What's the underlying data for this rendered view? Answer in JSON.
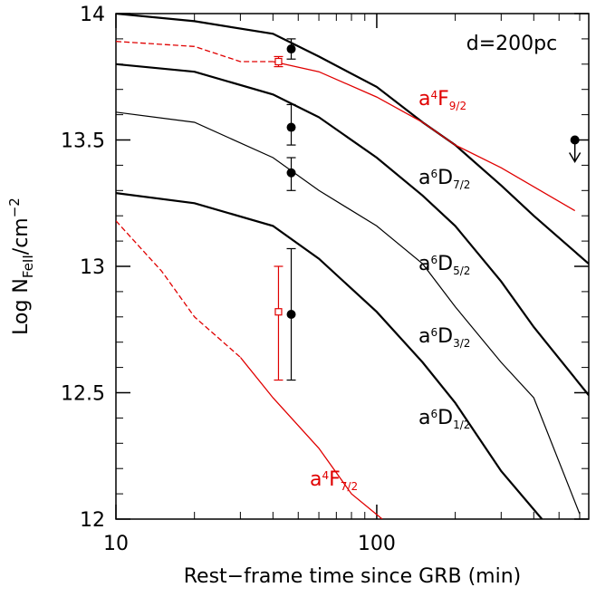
{
  "chart_data": {
    "type": "line",
    "annotation": "d=200pc",
    "x_label": "Rest−frame time since GRB (min)",
    "y_label": {
      "base": "Log N",
      "sub": "FeII",
      "mid": "/cm",
      "sup": "−2"
    },
    "xscale": "log",
    "xlim": [
      10,
      650
    ],
    "ylim": [
      12,
      14
    ],
    "xticks": [
      10,
      100
    ],
    "xminorticks": [
      20,
      30,
      40,
      50,
      60,
      70,
      80,
      90,
      200,
      300,
      400,
      500,
      600
    ],
    "yticks": [
      12,
      12.5,
      13,
      13.5,
      14
    ],
    "yminorticks": [
      12.1,
      12.2,
      12.3,
      12.4,
      12.6,
      12.7,
      12.8,
      12.9,
      13.1,
      13.2,
      13.3,
      13.4,
      13.6,
      13.7,
      13.8,
      13.9
    ],
    "series": [
      {
        "label": {
          "base": "a",
          "sup": "6",
          "term": "D",
          "sub": "7/2"
        },
        "color": "#000000",
        "width": 2.2,
        "x": [
          10,
          20,
          40,
          60,
          100,
          150,
          200,
          300,
          400,
          650
        ],
        "values": [
          14.0,
          13.97,
          13.92,
          13.83,
          13.71,
          13.57,
          13.48,
          13.32,
          13.2,
          13.01
        ]
      },
      {
        "label": {
          "base": "a",
          "sup": "6",
          "term": "D",
          "sub": "5/2"
        },
        "color": "#000000",
        "width": 2.2,
        "x": [
          10,
          20,
          40,
          60,
          100,
          150,
          200,
          300,
          400,
          650
        ],
        "values": [
          13.8,
          13.77,
          13.68,
          13.59,
          13.43,
          13.28,
          13.16,
          12.94,
          12.76,
          12.49
        ]
      },
      {
        "label": {
          "base": "a",
          "sup": "6",
          "term": "D",
          "sub": "3/2"
        },
        "color": "#000000",
        "width": 1.2,
        "x": [
          10,
          20,
          40,
          60,
          100,
          150,
          200,
          300,
          400,
          600
        ],
        "values": [
          13.61,
          13.57,
          13.43,
          13.3,
          13.16,
          13.01,
          12.84,
          12.62,
          12.48,
          12.02
        ]
      },
      {
        "label": {
          "base": "a",
          "sup": "6",
          "term": "D",
          "sub": "1/2"
        },
        "color": "#000000",
        "width": 2.2,
        "x": [
          10,
          20,
          40,
          60,
          100,
          150,
          200,
          300,
          430
        ],
        "values": [
          13.29,
          13.25,
          13.16,
          13.03,
          12.82,
          12.62,
          12.46,
          12.19,
          12.0
        ]
      },
      {
        "label": {
          "base": "a",
          "sup": "4",
          "term": "F",
          "sub": "9/2"
        },
        "color": "#e00000",
        "width": 1.3,
        "dashed_until": 40,
        "x": [
          10,
          20,
          30,
          40,
          60,
          100,
          150,
          200,
          300,
          575
        ],
        "values": [
          13.89,
          13.87,
          13.81,
          13.81,
          13.77,
          13.67,
          13.57,
          13.48,
          13.39,
          13.22
        ]
      },
      {
        "label": {
          "base": "a",
          "sup": "4",
          "term": "F",
          "sub": "7/2"
        },
        "color": "#e00000",
        "width": 1.3,
        "dashed_until": 30,
        "x": [
          10,
          15,
          20,
          30,
          40,
          60,
          80,
          105
        ],
        "values": [
          13.18,
          12.98,
          12.8,
          12.64,
          12.48,
          12.28,
          12.1,
          12.0
        ]
      }
    ],
    "points": [
      {
        "marker": "filled-circle",
        "color": "#000000",
        "x": [
          47,
          47,
          47,
          47
        ],
        "values": [
          13.86,
          13.55,
          13.37,
          12.81
        ],
        "err_low": [
          0.04,
          0.07,
          0.07,
          0.26
        ],
        "err_high": [
          0.04,
          0.09,
          0.06,
          0.26
        ]
      },
      {
        "marker": "open-square",
        "color": "#e00000",
        "x": [
          42,
          42
        ],
        "values": [
          13.81,
          12.82
        ],
        "err_low": [
          0.02,
          0.27
        ],
        "err_high": [
          0.02,
          0.18
        ]
      },
      {
        "marker": "upper-limit",
        "color": "#000000",
        "x": [
          575
        ],
        "values": [
          13.5
        ]
      }
    ]
  }
}
